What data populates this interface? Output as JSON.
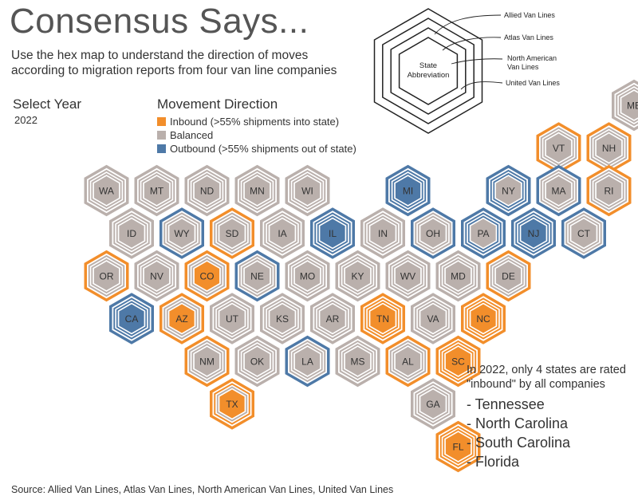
{
  "title": "Consensus Says...",
  "subtitle": "Use the hex map to understand the direction of moves according to migration reports from four van line companies",
  "select_year": {
    "label": "Select Year",
    "value": "2022"
  },
  "legend": {
    "title": "Movement Direction",
    "items": [
      {
        "label": "Inbound (>55% shipments into state)",
        "color": "#F28E2B"
      },
      {
        "label": "Balanced",
        "color": "#BAB0AC"
      },
      {
        "label": "Outbound (>55% shipments out of state)",
        "color": "#4E79A7"
      }
    ]
  },
  "key": {
    "center_label_1": "State",
    "center_label_2": "Abbreviation",
    "rings": [
      "Allied Van Lines",
      "Atlas Van Lines",
      "North American Van Lines",
      "United Van Lines"
    ]
  },
  "chart_data": {
    "type": "hex-map",
    "category_colors": {
      "inbound": "#F28E2B",
      "balanced": "#BAB0AC",
      "outbound": "#4E79A7"
    },
    "ring_order": [
      "Allied Van Lines",
      "Atlas Van Lines",
      "North American Van Lines",
      "United Van Lines"
    ],
    "states": [
      {
        "abbr": "ME",
        "row": 0,
        "col": 11,
        "rings": [
          "balanced",
          "balanced",
          "balanced",
          "balanced"
        ]
      },
      {
        "abbr": "VT",
        "row": 1,
        "col": 9.5,
        "rings": [
          "inbound",
          "balanced",
          "balanced",
          "balanced"
        ]
      },
      {
        "abbr": "NH",
        "row": 1,
        "col": 10.5,
        "rings": [
          "inbound",
          "balanced",
          "balanced",
          "balanced"
        ]
      },
      {
        "abbr": "WA",
        "row": 2,
        "col": 0.5,
        "rings": [
          "balanced",
          "balanced",
          "balanced",
          "balanced"
        ]
      },
      {
        "abbr": "MT",
        "row": 2,
        "col": 1.5,
        "rings": [
          "balanced",
          "balanced",
          "balanced",
          "balanced"
        ]
      },
      {
        "abbr": "ND",
        "row": 2,
        "col": 2.5,
        "rings": [
          "balanced",
          "balanced",
          "balanced",
          "balanced"
        ]
      },
      {
        "abbr": "MN",
        "row": 2,
        "col": 3.5,
        "rings": [
          "balanced",
          "balanced",
          "balanced",
          "balanced"
        ]
      },
      {
        "abbr": "WI",
        "row": 2,
        "col": 4.5,
        "rings": [
          "balanced",
          "balanced",
          "balanced",
          "balanced"
        ]
      },
      {
        "abbr": "MI",
        "row": 2,
        "col": 6.5,
        "rings": [
          "outbound",
          "outbound",
          "outbound",
          "outbound"
        ]
      },
      {
        "abbr": "NY",
        "row": 2,
        "col": 8.5,
        "rings": [
          "outbound",
          "outbound",
          "outbound",
          "balanced"
        ]
      },
      {
        "abbr": "MA",
        "row": 2,
        "col": 9.5,
        "rings": [
          "outbound",
          "balanced",
          "balanced",
          "balanced"
        ]
      },
      {
        "abbr": "RI",
        "row": 2,
        "col": 10.5,
        "rings": [
          "inbound",
          "balanced",
          "balanced",
          "balanced"
        ]
      },
      {
        "abbr": "ID",
        "row": 3,
        "col": 1,
        "rings": [
          "balanced",
          "balanced",
          "balanced",
          "balanced"
        ]
      },
      {
        "abbr": "WY",
        "row": 3,
        "col": 2,
        "rings": [
          "outbound",
          "balanced",
          "balanced",
          "balanced"
        ]
      },
      {
        "abbr": "SD",
        "row": 3,
        "col": 3,
        "rings": [
          "inbound",
          "balanced",
          "balanced",
          "balanced"
        ]
      },
      {
        "abbr": "IA",
        "row": 3,
        "col": 4,
        "rings": [
          "balanced",
          "balanced",
          "balanced",
          "balanced"
        ]
      },
      {
        "abbr": "IL",
        "row": 3,
        "col": 5,
        "rings": [
          "outbound",
          "outbound",
          "outbound",
          "outbound"
        ]
      },
      {
        "abbr": "IN",
        "row": 3,
        "col": 6,
        "rings": [
          "balanced",
          "balanced",
          "balanced",
          "balanced"
        ]
      },
      {
        "abbr": "OH",
        "row": 3,
        "col": 7,
        "rings": [
          "outbound",
          "balanced",
          "balanced",
          "balanced"
        ]
      },
      {
        "abbr": "PA",
        "row": 3,
        "col": 8,
        "rings": [
          "outbound",
          "outbound",
          "outbound",
          "balanced"
        ]
      },
      {
        "abbr": "NJ",
        "row": 3,
        "col": 9,
        "rings": [
          "outbound",
          "outbound",
          "outbound",
          "outbound"
        ]
      },
      {
        "abbr": "CT",
        "row": 3,
        "col": 10,
        "rings": [
          "outbound",
          "balanced",
          "balanced",
          "balanced"
        ]
      },
      {
        "abbr": "OR",
        "row": 4,
        "col": 0.5,
        "rings": [
          "inbound",
          "balanced",
          "balanced",
          "balanced"
        ]
      },
      {
        "abbr": "NV",
        "row": 4,
        "col": 1.5,
        "rings": [
          "balanced",
          "balanced",
          "balanced",
          "balanced"
        ]
      },
      {
        "abbr": "CO",
        "row": 4,
        "col": 2.5,
        "rings": [
          "inbound",
          "balanced",
          "balanced",
          "inbound"
        ]
      },
      {
        "abbr": "NE",
        "row": 4,
        "col": 3.5,
        "rings": [
          "outbound",
          "balanced",
          "balanced",
          "balanced"
        ]
      },
      {
        "abbr": "MO",
        "row": 4,
        "col": 4.5,
        "rings": [
          "balanced",
          "balanced",
          "balanced",
          "balanced"
        ]
      },
      {
        "abbr": "KY",
        "row": 4,
        "col": 5.5,
        "rings": [
          "balanced",
          "balanced",
          "balanced",
          "balanced"
        ]
      },
      {
        "abbr": "WV",
        "row": 4,
        "col": 6.5,
        "rings": [
          "balanced",
          "balanced",
          "balanced",
          "balanced"
        ]
      },
      {
        "abbr": "MD",
        "row": 4,
        "col": 7.5,
        "rings": [
          "balanced",
          "balanced",
          "balanced",
          "balanced"
        ]
      },
      {
        "abbr": "DE",
        "row": 4,
        "col": 8.5,
        "rings": [
          "inbound",
          "balanced",
          "balanced",
          "balanced"
        ]
      },
      {
        "abbr": "CA",
        "row": 5,
        "col": 1,
        "rings": [
          "outbound",
          "outbound",
          "outbound",
          "outbound"
        ]
      },
      {
        "abbr": "AZ",
        "row": 5,
        "col": 2,
        "rings": [
          "inbound",
          "balanced",
          "balanced",
          "inbound"
        ]
      },
      {
        "abbr": "UT",
        "row": 5,
        "col": 3,
        "rings": [
          "balanced",
          "balanced",
          "balanced",
          "balanced"
        ]
      },
      {
        "abbr": "KS",
        "row": 5,
        "col": 4,
        "rings": [
          "balanced",
          "balanced",
          "balanced",
          "balanced"
        ]
      },
      {
        "abbr": "AR",
        "row": 5,
        "col": 5,
        "rings": [
          "balanced",
          "balanced",
          "balanced",
          "balanced"
        ]
      },
      {
        "abbr": "TN",
        "row": 5,
        "col": 6,
        "rings": [
          "inbound",
          "inbound",
          "inbound",
          "inbound"
        ]
      },
      {
        "abbr": "VA",
        "row": 5,
        "col": 7,
        "rings": [
          "balanced",
          "balanced",
          "balanced",
          "balanced"
        ]
      },
      {
        "abbr": "NC",
        "row": 5,
        "col": 8,
        "rings": [
          "inbound",
          "inbound",
          "inbound",
          "inbound"
        ]
      },
      {
        "abbr": "NM",
        "row": 6,
        "col": 2.5,
        "rings": [
          "inbound",
          "balanced",
          "balanced",
          "balanced"
        ]
      },
      {
        "abbr": "OK",
        "row": 6,
        "col": 3.5,
        "rings": [
          "balanced",
          "balanced",
          "balanced",
          "balanced"
        ]
      },
      {
        "abbr": "LA",
        "row": 6,
        "col": 4.5,
        "rings": [
          "outbound",
          "balanced",
          "balanced",
          "balanced"
        ]
      },
      {
        "abbr": "MS",
        "row": 6,
        "col": 5.5,
        "rings": [
          "balanced",
          "balanced",
          "balanced",
          "balanced"
        ]
      },
      {
        "abbr": "AL",
        "row": 6,
        "col": 6.5,
        "rings": [
          "inbound",
          "balanced",
          "balanced",
          "balanced"
        ]
      },
      {
        "abbr": "SC",
        "row": 6,
        "col": 7.5,
        "rings": [
          "inbound",
          "inbound",
          "inbound",
          "inbound"
        ]
      },
      {
        "abbr": "TX",
        "row": 7,
        "col": 3,
        "rings": [
          "inbound",
          "inbound",
          "balanced",
          "inbound"
        ]
      },
      {
        "abbr": "GA",
        "row": 7,
        "col": 7,
        "rings": [
          "balanced",
          "balanced",
          "balanced",
          "balanced"
        ]
      },
      {
        "abbr": "FL",
        "row": 8,
        "col": 7.5,
        "rings": [
          "inbound",
          "inbound",
          "inbound",
          "inbound"
        ]
      }
    ]
  },
  "note": {
    "text": "In 2022, only 4 states are rated \"inbound\" by all companies",
    "items": [
      "- Tennessee",
      "- North Carolina",
      "- South Carolina",
      "- Florida"
    ]
  },
  "source": "Source: Allied Van Lines, Atlas Van Lines, North American Van Lines, United Van Lines"
}
